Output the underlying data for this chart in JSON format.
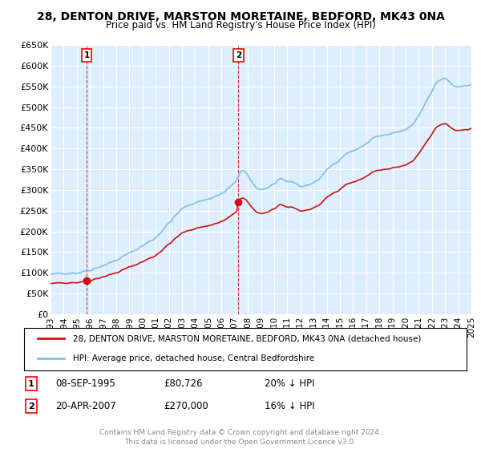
{
  "title_line1": "28, DENTON DRIVE, MARSTON MORETAINE, BEDFORD, MK43 0NA",
  "title_line2": "Price paid vs. HM Land Registry's House Price Index (HPI)",
  "ylim": [
    0,
    650000
  ],
  "yticks": [
    0,
    50000,
    100000,
    150000,
    200000,
    250000,
    300000,
    350000,
    400000,
    450000,
    500000,
    550000,
    600000,
    650000
  ],
  "ytick_labels": [
    "£0",
    "£50K",
    "£100K",
    "£150K",
    "£200K",
    "£250K",
    "£300K",
    "£350K",
    "£400K",
    "£450K",
    "£500K",
    "£550K",
    "£600K",
    "£650K"
  ],
  "hpi_color": "#7bbfea",
  "price_color": "#cc1111",
  "sale1_year": 1995.75,
  "sale1_price": 80726,
  "sale2_year": 2007.29,
  "sale2_price": 270000,
  "legend_entry1": "28, DENTON DRIVE, MARSTON MORETAINE, BEDFORD, MK43 0NA (detached house)",
  "legend_entry2": "HPI: Average price, detached house, Central Bedfordshire",
  "note1_label": "1",
  "note1_date": "08-SEP-1995",
  "note1_price": "£80,726",
  "note1_hpi": "20% ↓ HPI",
  "note2_label": "2",
  "note2_date": "20-APR-2007",
  "note2_price": "£270,000",
  "note2_hpi": "16% ↓ HPI",
  "footer": "Contains HM Land Registry data © Crown copyright and database right 2024.\nThis data is licensed under the Open Government Licence v3.0.",
  "bg_color": "#ffffff",
  "plot_bg_color": "#ddeeff",
  "grid_color": "#ffffff",
  "annotation_line_color": "#dd3333"
}
